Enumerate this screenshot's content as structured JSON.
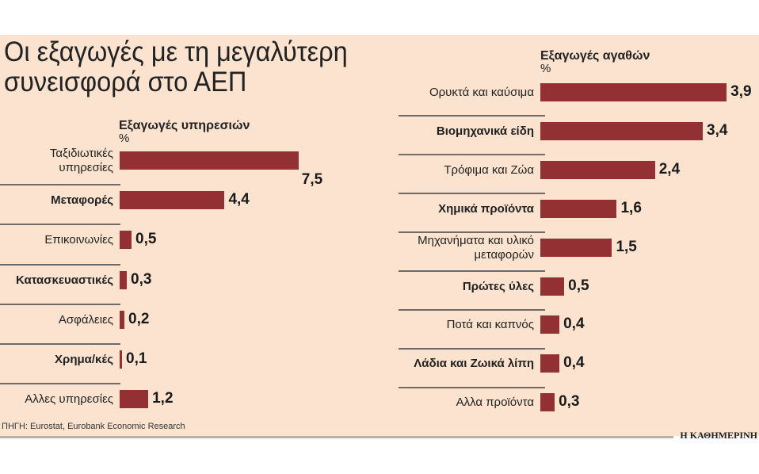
{
  "title_line1": "Οι εξαγωγές με τη μεγαλύτερη",
  "title_line2": "συνεισφορά στο ΑΕΠ",
  "source": "ΠΗΓΗ: Eurostat, Eurobank Economic Research",
  "brand": "Η ΚΑΘΗΜΕΡΙΝΗ",
  "colors": {
    "bar": "#923033",
    "background": "#fbe3cf"
  },
  "chart_data": [
    {
      "type": "bar",
      "orientation": "horizontal",
      "title": "Εξαγωγές υπηρεσιών",
      "unit": "%",
      "categories": [
        "Ταξιδιωτικές υπηρεσίες",
        "Μεταφορές",
        "Επικοινωνίες",
        "Κατασκευαστικές",
        "Ασφάλειες",
        "Χρημα/κές",
        "Αλλες υπηρεσίες"
      ],
      "labels": [
        "7,5",
        "4,4",
        "0,5",
        "0,3",
        "0,2",
        "0,1",
        "1,2"
      ],
      "values": [
        7.5,
        4.4,
        0.5,
        0.3,
        0.2,
        0.1,
        1.2
      ]
    },
    {
      "type": "bar",
      "orientation": "horizontal",
      "title": "Εξαγωγές αγαθών",
      "unit": "%",
      "categories": [
        "Ορυκτά και καύσιμα",
        "Βιομηχανικά είδη",
        "Τρόφιμα και Ζώα",
        "Χημικά προϊόντα",
        "Μηχανήματα και υλικό μεταφορών",
        "Πρώτες ύλες",
        "Ποτά και καπνός",
        "Λάδια και Ζωικά λίπη",
        "Αλλα προϊόντα"
      ],
      "labels": [
        "3,9",
        "3,4",
        "2,4",
        "1,6",
        "1,5",
        "0,5",
        "0,4",
        "0,4",
        "0,3"
      ],
      "values": [
        3.9,
        3.4,
        2.4,
        1.6,
        1.5,
        0.5,
        0.4,
        0.4,
        0.3
      ]
    }
  ]
}
